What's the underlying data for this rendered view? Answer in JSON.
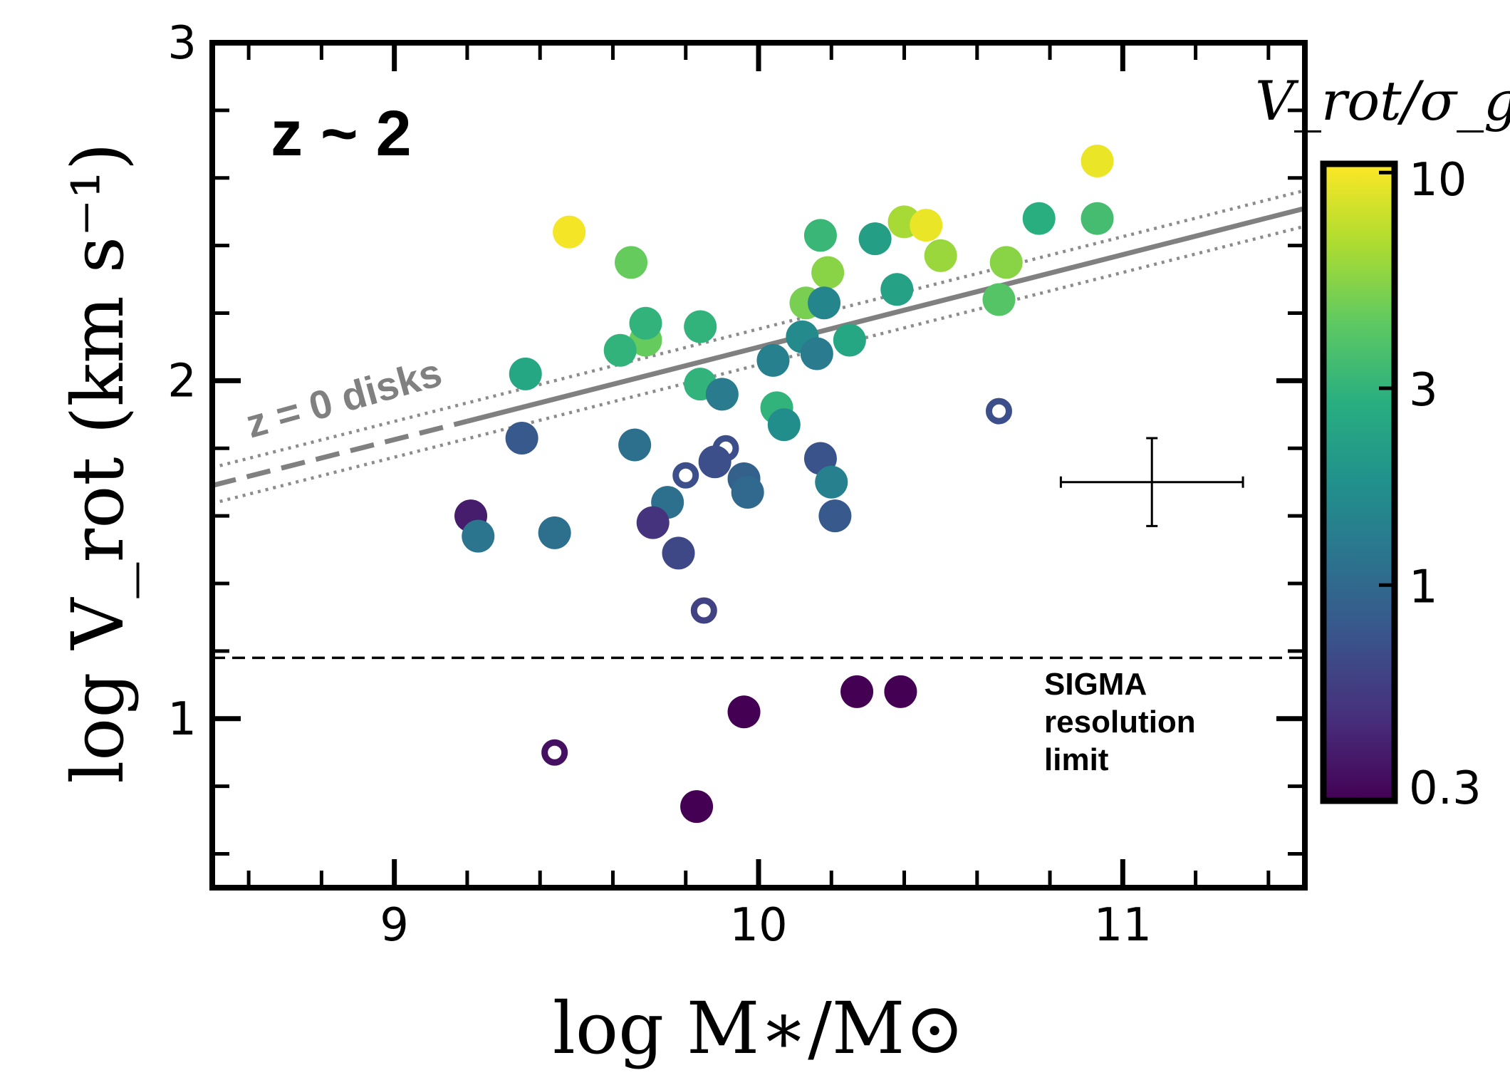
{
  "chart_data": {
    "type": "scatter",
    "title": "z ~ 2",
    "xlabel": "log M∗/M⊙",
    "ylabel": "log V_rot (km s⁻¹)",
    "xlim": [
      8.5,
      11.5
    ],
    "ylim": [
      0.5,
      3.0
    ],
    "xticks": [
      {
        "value": 9,
        "label": "9"
      },
      {
        "value": 10,
        "label": "10"
      },
      {
        "value": 11,
        "label": "11"
      }
    ],
    "yticks": [
      {
        "value": 1,
        "label": "1"
      },
      {
        "value": 2,
        "label": "2"
      },
      {
        "value": 3,
        "label": "3"
      }
    ],
    "colorbar": {
      "label": "V_rot/σ_g",
      "scale": "log",
      "range": [
        0.3,
        10.5
      ],
      "ticks": [
        {
          "value": 0.3,
          "label": "0.3"
        },
        {
          "value": 1,
          "label": "1"
        },
        {
          "value": 3,
          "label": "3"
        },
        {
          "value": 10,
          "label": "10"
        }
      ]
    },
    "reference_relation": {
      "label": "z = 0 disks",
      "solid": {
        "x": [
          9.2,
          11.5
        ],
        "y": [
          1.88,
          2.51
        ]
      },
      "dashed_extrapolation": {
        "x": [
          8.5,
          9.2
        ],
        "y": [
          1.69,
          1.88
        ]
      },
      "scatter_band_offset": 0.053
    },
    "resolution_limit": {
      "y": 1.18,
      "label": [
        "SIGMA",
        "resolution",
        "limit"
      ]
    },
    "typical_error": {
      "x": 11.08,
      "y": 1.7,
      "xerr": 0.25,
      "yerr": 0.13
    },
    "points": [
      {
        "x": 9.48,
        "y": 2.44,
        "c": 10.0,
        "open": false
      },
      {
        "x": 9.65,
        "y": 2.35,
        "c": 4.5,
        "open": false
      },
      {
        "x": 9.69,
        "y": 2.12,
        "c": 4.5,
        "open": false
      },
      {
        "x": 9.69,
        "y": 2.17,
        "c": 3.0,
        "open": false
      },
      {
        "x": 9.62,
        "y": 2.09,
        "c": 3.0,
        "open": false
      },
      {
        "x": 9.36,
        "y": 2.02,
        "c": 2.5,
        "open": false
      },
      {
        "x": 9.84,
        "y": 2.16,
        "c": 3.0,
        "open": false
      },
      {
        "x": 9.84,
        "y": 1.99,
        "c": 3.0,
        "open": false
      },
      {
        "x": 9.9,
        "y": 1.96,
        "c": 1.3,
        "open": false
      },
      {
        "x": 9.35,
        "y": 1.83,
        "c": 0.8,
        "open": false
      },
      {
        "x": 9.66,
        "y": 1.81,
        "c": 1.1,
        "open": false
      },
      {
        "x": 9.8,
        "y": 1.72,
        "c": 0.7,
        "open": true
      },
      {
        "x": 9.91,
        "y": 1.8,
        "c": 0.7,
        "open": true
      },
      {
        "x": 9.88,
        "y": 1.76,
        "c": 0.7,
        "open": false
      },
      {
        "x": 9.96,
        "y": 1.71,
        "c": 0.9,
        "open": false
      },
      {
        "x": 9.97,
        "y": 1.67,
        "c": 1.0,
        "open": false
      },
      {
        "x": 9.75,
        "y": 1.64,
        "c": 1.1,
        "open": false
      },
      {
        "x": 9.71,
        "y": 1.58,
        "c": 0.5,
        "open": false
      },
      {
        "x": 9.78,
        "y": 1.49,
        "c": 0.65,
        "open": false
      },
      {
        "x": 9.21,
        "y": 1.6,
        "c": 0.4,
        "open": false
      },
      {
        "x": 9.23,
        "y": 1.54,
        "c": 1.2,
        "open": false
      },
      {
        "x": 9.44,
        "y": 1.55,
        "c": 1.1,
        "open": false
      },
      {
        "x": 9.85,
        "y": 1.32,
        "c": 0.6,
        "open": true
      },
      {
        "x": 10.04,
        "y": 2.06,
        "c": 1.4,
        "open": false
      },
      {
        "x": 10.05,
        "y": 1.92,
        "c": 3.0,
        "open": false
      },
      {
        "x": 10.07,
        "y": 1.87,
        "c": 1.7,
        "open": false
      },
      {
        "x": 10.12,
        "y": 2.13,
        "c": 1.6,
        "open": false
      },
      {
        "x": 10.13,
        "y": 2.23,
        "c": 5.0,
        "open": false
      },
      {
        "x": 10.17,
        "y": 2.43,
        "c": 3.2,
        "open": false
      },
      {
        "x": 10.19,
        "y": 2.32,
        "c": 5.5,
        "open": false
      },
      {
        "x": 10.18,
        "y": 2.23,
        "c": 1.5,
        "open": false
      },
      {
        "x": 10.16,
        "y": 2.08,
        "c": 1.3,
        "open": false
      },
      {
        "x": 10.25,
        "y": 2.12,
        "c": 2.5,
        "open": false
      },
      {
        "x": 10.17,
        "y": 1.77,
        "c": 0.75,
        "open": false
      },
      {
        "x": 10.2,
        "y": 1.7,
        "c": 1.4,
        "open": false
      },
      {
        "x": 10.21,
        "y": 1.6,
        "c": 0.8,
        "open": false
      },
      {
        "x": 10.32,
        "y": 2.42,
        "c": 2.2,
        "open": false
      },
      {
        "x": 10.38,
        "y": 2.27,
        "c": 2.3,
        "open": false
      },
      {
        "x": 10.4,
        "y": 2.47,
        "c": 6.5,
        "open": false
      },
      {
        "x": 10.46,
        "y": 2.46,
        "c": 9.5,
        "open": false
      },
      {
        "x": 10.5,
        "y": 2.37,
        "c": 6.0,
        "open": false
      },
      {
        "x": 10.66,
        "y": 2.24,
        "c": 4.0,
        "open": false
      },
      {
        "x": 10.68,
        "y": 2.35,
        "c": 5.5,
        "open": false
      },
      {
        "x": 10.66,
        "y": 1.91,
        "c": 0.7,
        "open": true
      },
      {
        "x": 10.77,
        "y": 2.48,
        "c": 2.8,
        "open": false
      },
      {
        "x": 10.93,
        "y": 2.48,
        "c": 3.5,
        "open": false
      },
      {
        "x": 10.93,
        "y": 2.65,
        "c": 9.5,
        "open": false
      },
      {
        "x": 9.44,
        "y": 0.9,
        "c": 0.35,
        "open": true
      },
      {
        "x": 9.96,
        "y": 1.02,
        "c": 0.3,
        "open": false
      },
      {
        "x": 9.83,
        "y": 0.74,
        "c": 0.3,
        "open": false
      },
      {
        "x": 10.27,
        "y": 1.08,
        "c": 0.3,
        "open": false
      },
      {
        "x": 10.39,
        "y": 1.08,
        "c": 0.3,
        "open": false
      }
    ]
  }
}
